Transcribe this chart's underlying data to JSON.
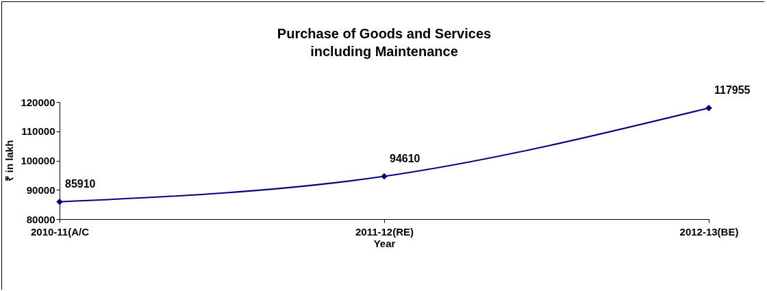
{
  "chart_data": {
    "type": "line",
    "title": [
      "Purchase of Goods and Services",
      "including Maintenance"
    ],
    "xlabel": "Year",
    "ylabel": "₹ in lakh",
    "categories": [
      "2010-11(A/C",
      "2011-12(RE)",
      "2012-13(BE)"
    ],
    "series": [
      {
        "color": "#000080",
        "values": [
          85910,
          94610,
          117955
        ]
      }
    ],
    "ylim": [
      80000,
      120000
    ],
    "yticks": [
      80000,
      90000,
      100000,
      110000,
      120000
    ],
    "grid": false,
    "legend": false,
    "marker": "diamond",
    "line_style": "solid",
    "data_labels": true
  }
}
